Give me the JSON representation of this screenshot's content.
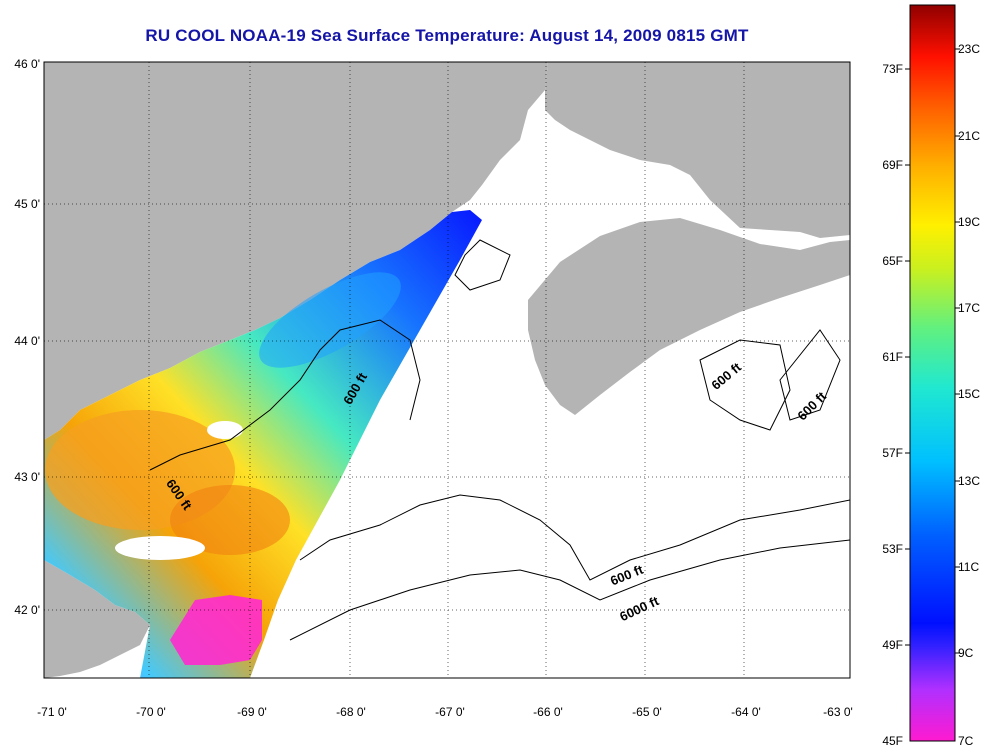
{
  "title": "RU COOL  NOAA-19  Sea Surface Temperature:  August 14, 2009 0815 GMT",
  "axes": {
    "lat_labels": [
      "46 0'",
      "45 0'",
      "44 0'",
      "43 0'",
      "42 0'"
    ],
    "lon_labels": [
      "-71 0'",
      "-70 0'",
      "-69 0'",
      "-68 0'",
      "-67 0'",
      "-66 0'",
      "-65 0'",
      "-64 0'",
      "-63 0'"
    ]
  },
  "colorbar": {
    "fahrenheit_labels": [
      "73F",
      "69F",
      "65F",
      "61F",
      "57F",
      "53F",
      "49F",
      "45F"
    ],
    "celsius_labels": [
      "23C",
      "21C",
      "19C",
      "17C",
      "15C",
      "13C",
      "11C",
      "9C",
      "7C"
    ]
  },
  "contour_labels": [
    "600 ft",
    "600 ft",
    "600 ft",
    "600 ft",
    "600 ft",
    "6000 ft"
  ],
  "colors": {
    "land": "#b4b4b4",
    "ocean_no_data": "#ffffff",
    "title": "#1515a8"
  }
}
